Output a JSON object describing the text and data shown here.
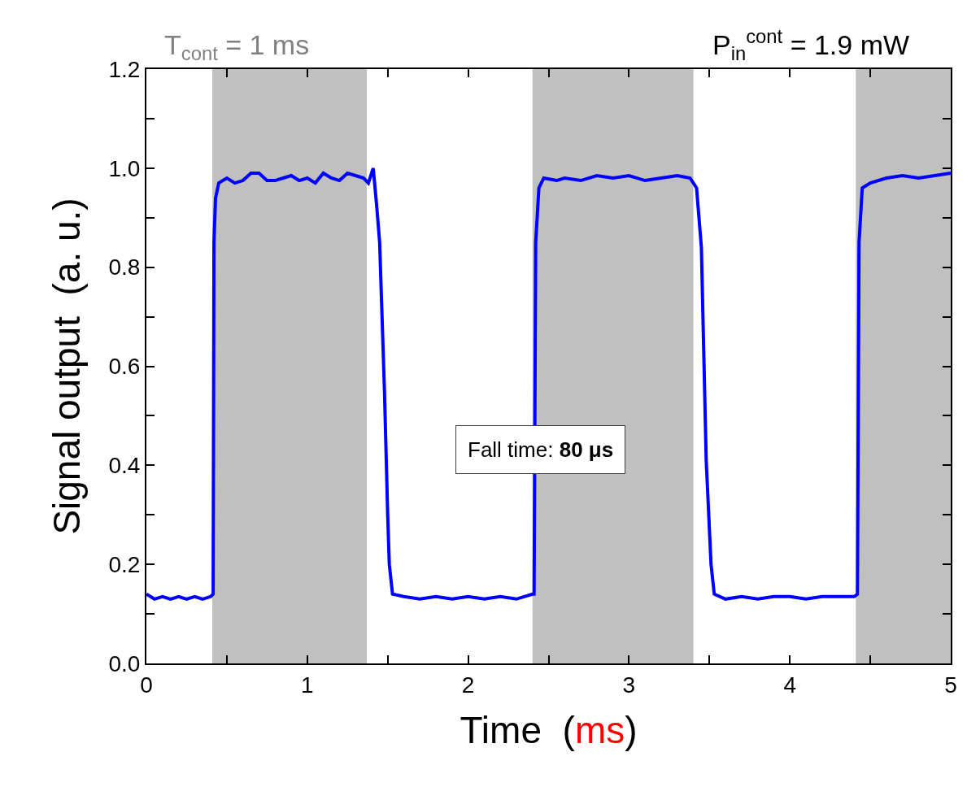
{
  "chart_data": {
    "type": "line",
    "xlabel": "Time  (ms)",
    "ylabel": "Signal output  (a. u.)",
    "annotations": [
      "T$_{cont}$ = 1 ms",
      "P$_{in}$$^{cont}$ = 1.9 mW",
      "Fall time: 80 μs"
    ],
    "x": [
      0,
      0.05,
      0.1,
      0.15,
      0.2,
      0.25,
      0.3,
      0.35,
      0.4,
      0.415,
      0.42,
      0.43,
      0.45,
      0.5,
      0.55,
      0.6,
      0.65,
      0.7,
      0.75,
      0.8,
      0.85,
      0.9,
      0.95,
      1.0,
      1.05,
      1.1,
      1.15,
      1.2,
      1.25,
      1.3,
      1.35,
      1.38,
      1.41,
      1.43,
      1.45,
      1.48,
      1.5,
      1.51,
      1.53,
      1.6,
      1.7,
      1.8,
      1.9,
      2.0,
      2.1,
      2.2,
      2.3,
      2.4,
      2.41,
      2.42,
      2.44,
      2.47,
      2.55,
      2.6,
      2.7,
      2.8,
      2.9,
      3.0,
      3.1,
      3.2,
      3.3,
      3.38,
      3.42,
      3.45,
      3.48,
      3.51,
      3.53,
      3.6,
      3.7,
      3.8,
      3.9,
      4.0,
      4.1,
      4.2,
      4.3,
      4.4,
      4.42,
      4.43,
      4.45,
      4.5,
      4.6,
      4.7,
      4.8,
      4.9,
      5.0
    ],
    "series": [
      {
        "color": "#0000ff",
        "values": [
          0.14,
          0.13,
          0.135,
          0.13,
          0.135,
          0.13,
          0.135,
          0.13,
          0.135,
          0.14,
          0.85,
          0.94,
          0.97,
          0.98,
          0.97,
          0.975,
          0.99,
          0.99,
          0.975,
          0.975,
          0.98,
          0.985,
          0.975,
          0.98,
          0.97,
          0.99,
          0.98,
          0.975,
          0.99,
          0.985,
          0.98,
          0.97,
          1.0,
          0.93,
          0.85,
          0.55,
          0.3,
          0.2,
          0.14,
          0.135,
          0.13,
          0.135,
          0.13,
          0.135,
          0.13,
          0.135,
          0.13,
          0.14,
          0.14,
          0.85,
          0.96,
          0.98,
          0.975,
          0.98,
          0.975,
          0.985,
          0.98,
          0.985,
          0.975,
          0.98,
          0.985,
          0.98,
          0.96,
          0.84,
          0.41,
          0.2,
          0.14,
          0.13,
          0.135,
          0.13,
          0.135,
          0.135,
          0.13,
          0.135,
          0.135,
          0.135,
          0.14,
          0.85,
          0.96,
          0.97,
          0.98,
          0.985,
          0.98,
          0.985,
          0.99
        ]
      }
    ],
    "bands": [
      {
        "axis": "x",
        "from": 0.41,
        "to": 1.37,
        "color": "#c0c0c0"
      },
      {
        "axis": "x",
        "from": 2.4,
        "to": 3.4,
        "color": "#c0c0c0"
      },
      {
        "axis": "x",
        "from": 4.41,
        "to": 5,
        "color": "#c0c0c0"
      }
    ],
    "xlim": [
      0,
      5
    ],
    "xticks": [
      0,
      {
        "value": 0.5,
        "label": null
      },
      1,
      {
        "value": 1.5,
        "label": null
      },
      2,
      {
        "value": 2.5,
        "label": null
      },
      3,
      {
        "value": 3.5,
        "label": null
      },
      4,
      {
        "value": 4.5,
        "label": null
      },
      5
    ],
    "ylim": [
      0,
      1.2
    ],
    "yticks": [
      {
        "value": 0,
        "label": "0.0"
      },
      {
        "value": 0.1,
        "label": null
      },
      {
        "value": 0.2,
        "label": "0.2"
      },
      {
        "value": 0.3,
        "label": null
      },
      {
        "value": 0.4,
        "label": "0.4"
      },
      {
        "value": 0.5,
        "label": null
      },
      {
        "value": 0.6,
        "label": "0.6"
      },
      {
        "value": 0.7,
        "label": null
      },
      {
        "value": 0.8,
        "label": "0.8"
      },
      {
        "value": 0.9,
        "label": null
      },
      {
        "value": 1.0,
        "label": "1.0"
      },
      {
        "value": 1.1,
        "label": null
      },
      {
        "value": 1.2,
        "label": "1.2"
      }
    ],
    "marker": "none",
    "line_style": "solid"
  }
}
